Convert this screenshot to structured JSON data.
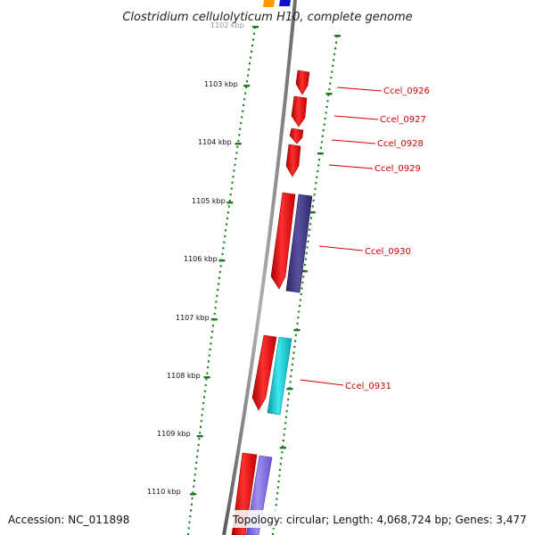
{
  "title": "Clostridium cellulolyticum H10, complete genome",
  "faint_tick_label": "1102 kbp",
  "tick_labels": [
    "1103 kbp",
    "1104 kbp",
    "1105 kbp",
    "1106 kbp",
    "1107 kbp",
    "1108 kbp",
    "1109 kbp",
    "1110 kbp"
  ],
  "gene_labels": [
    "Ccel_0926",
    "Ccel_0927",
    "Ccel_0928",
    "Ccel_0929",
    "Ccel_0930",
    "Ccel_0931"
  ],
  "footer": {
    "accession": "Accession: NC_011898",
    "topology": "Topology: circular; Length: 4,068,724 bp; Genes: 3,477"
  },
  "colors": {
    "backbone": "#808080",
    "gene_red": "#ee0000",
    "gene_navy": "#3a3278",
    "gene_cyan": "#10c0c8",
    "gene_lavender": "#7a6ad8",
    "gene_blue": "#1010c8",
    "gene_orange": "#ff9900",
    "tick_green": "#1a7a1a",
    "label_red": "#d40000"
  }
}
